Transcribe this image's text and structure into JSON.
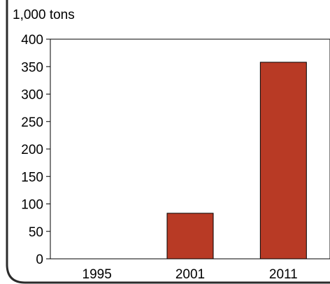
{
  "chart_data": {
    "type": "bar",
    "title": "",
    "unit_label": "1,000 tons",
    "xlabel": "",
    "ylabel": "",
    "categories": [
      "1995",
      "2001",
      "2011"
    ],
    "values": [
      0,
      83,
      358
    ],
    "ylim": [
      0,
      400
    ],
    "yticks": [
      0,
      50,
      100,
      150,
      200,
      250,
      300,
      350,
      400
    ],
    "ytick_labels": [
      "0",
      "50",
      "100",
      "150",
      "200",
      "250",
      "300",
      "350",
      "400"
    ],
    "grid": false,
    "legend": "none",
    "bar_color": "#b83a25",
    "frame_color": "#2b2b2b"
  }
}
